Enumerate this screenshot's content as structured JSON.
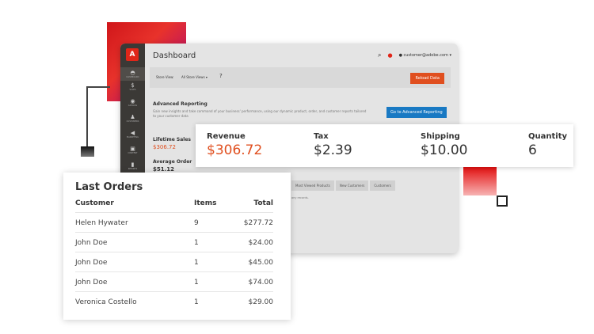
{
  "colors": {
    "accent": "#e02619",
    "revenue": "#e04f1f",
    "reload_button": "#e04f1f",
    "advanced_button": "#1979c3",
    "sidebar": "#3b3936"
  },
  "admin": {
    "logo": "A",
    "title": "Dashboard",
    "user": "customer@adobe.com",
    "sidebar": [
      {
        "icon": "dashboard-icon",
        "label": "DASHBOARD"
      },
      {
        "icon": "dollar-icon",
        "label": "SALES"
      },
      {
        "icon": "catalog-icon",
        "label": "CATALOG"
      },
      {
        "icon": "customers-icon",
        "label": "CUSTOMERS"
      },
      {
        "icon": "megaphone-icon",
        "label": "MARKETING"
      },
      {
        "icon": "content-icon",
        "label": "CONTENT"
      },
      {
        "icon": "reports-icon",
        "label": "REPORTS"
      }
    ],
    "store_view_label": "Store View:",
    "store_view_value": "All Store Views",
    "reload_label": "Reload Data",
    "adv_title": "Advanced Reporting",
    "adv_text": "Gain new insights and take command of your business' performance, using our dynamic product, order, and customer reports tailored to your customer data",
    "adv_button": "Go to Advanced Reporting",
    "lifetime_label": "Lifetime Sales",
    "lifetime_value": "$306.72",
    "avg_label": "Average Order",
    "avg_value": "$51.12",
    "tabs": [
      "Most Viewed Products",
      "New Customers",
      "Customers"
    ],
    "no_records": "any records."
  },
  "stats": [
    {
      "label": "Revenue",
      "value": "$306.72"
    },
    {
      "label": "Tax",
      "value": "$2.39"
    },
    {
      "label": "Shipping",
      "value": "$10.00"
    },
    {
      "label": "Quantity",
      "value": "6"
    }
  ],
  "orders": {
    "title": "Last Orders",
    "headers": [
      "Customer",
      "Items",
      "Total"
    ],
    "rows": [
      [
        "Helen Hywater",
        "9",
        "$277.72"
      ],
      [
        "John Doe",
        "1",
        "$24.00"
      ],
      [
        "John Doe",
        "1",
        "$45.00"
      ],
      [
        "John Doe",
        "1",
        "$74.00"
      ],
      [
        "Veronica Costello",
        "1",
        "$29.00"
      ]
    ]
  }
}
